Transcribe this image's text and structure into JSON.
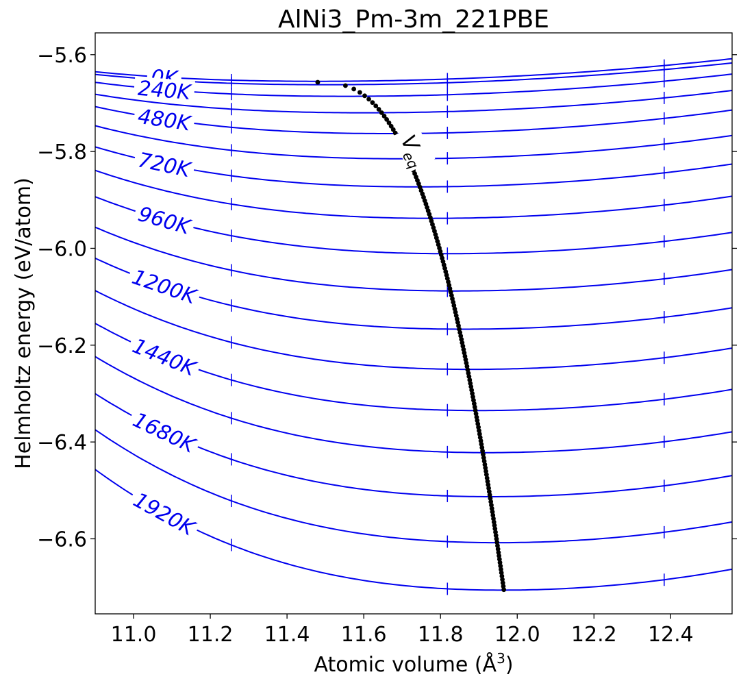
{
  "chart_data": {
    "type": "line",
    "title": "AlNi3_Pm-3m_221PBE",
    "xlabel": "Atomic volume (Å³)",
    "ylabel": "Helmholtz energy (eV/atom)",
    "xlim": [
      10.9,
      12.56
    ],
    "ylim": [
      -6.755,
      -5.555
    ],
    "x_ticks": [
      "11.0",
      "11.2",
      "11.4",
      "11.6",
      "11.8",
      "12.0",
      "12.2",
      "12.4"
    ],
    "x_tick_values": [
      11.0,
      11.2,
      11.4,
      11.6,
      11.8,
      12.0,
      12.2,
      12.4
    ],
    "y_ticks": [
      "−5.6",
      "−5.8",
      "−6.0",
      "−6.2",
      "−6.4",
      "−6.6"
    ],
    "y_tick_values": [
      -5.6,
      -5.8,
      -6.0,
      -6.2,
      -6.4,
      -6.6
    ],
    "grid": false,
    "line_color": "#0000ee",
    "point_color": "#000000",
    "marker_volumes": [
      11.255,
      11.818,
      12.383
    ],
    "series": [
      {
        "temperature": 0,
        "v0": 11.48,
        "f0": -5.655,
        "k": 0.04
      },
      {
        "temperature": 120,
        "v0": 11.5,
        "f0": -5.662,
        "k": 0.04
      },
      {
        "temperature": 240,
        "v0": 11.55,
        "f0": -5.686,
        "k": 0.045
      },
      {
        "temperature": 360,
        "v0": 11.6,
        "f0": -5.72,
        "k": 0.05
      },
      {
        "temperature": 480,
        "v0": 11.66,
        "f0": -5.763,
        "k": 0.06
      },
      {
        "temperature": 600,
        "v0": 11.7,
        "f0": -5.815,
        "k": 0.065
      },
      {
        "temperature": 720,
        "v0": 11.74,
        "f0": -5.873,
        "k": 0.07
      },
      {
        "temperature": 840,
        "v0": 11.78,
        "f0": -5.938,
        "k": 0.075
      },
      {
        "temperature": 960,
        "v0": 11.82,
        "f0": -6.011,
        "k": 0.08
      },
      {
        "temperature": 1080,
        "v0": 11.84,
        "f0": -6.088,
        "k": 0.085
      },
      {
        "temperature": 1200,
        "v0": 11.86,
        "f0": -6.167,
        "k": 0.09
      },
      {
        "temperature": 1320,
        "v0": 11.88,
        "f0": -6.25,
        "k": 0.095
      },
      {
        "temperature": 1440,
        "v0": 11.9,
        "f0": -6.335,
        "k": 0.1
      },
      {
        "temperature": 1560,
        "v0": 11.92,
        "f0": -6.422,
        "k": 0.105
      },
      {
        "temperature": 1680,
        "v0": 11.93,
        "f0": -6.513,
        "k": 0.11
      },
      {
        "temperature": 1800,
        "v0": 11.95,
        "f0": -6.608,
        "k": 0.115
      },
      {
        "temperature": 1920,
        "v0": 11.96,
        "f0": -6.706,
        "k": 0.12
      }
    ],
    "contour_labels": [
      {
        "text": "0K",
        "temperature": 0
      },
      {
        "text": "240K",
        "temperature": 240
      },
      {
        "text": "480K",
        "temperature": 480
      },
      {
        "text": "720K",
        "temperature": 720
      },
      {
        "text": "960K",
        "temperature": 960
      },
      {
        "text": "1200K",
        "temperature": 1200
      },
      {
        "text": "1440K",
        "temperature": 1440
      },
      {
        "text": "1680K",
        "temperature": 1680
      },
      {
        "text": "1920K",
        "temperature": 1920
      }
    ],
    "equilibrium": {
      "label": "V",
      "label_sub": "eq",
      "v_start": 11.48,
      "v_end": 11.965,
      "f_start": -5.657,
      "f_end": -6.705
    }
  }
}
